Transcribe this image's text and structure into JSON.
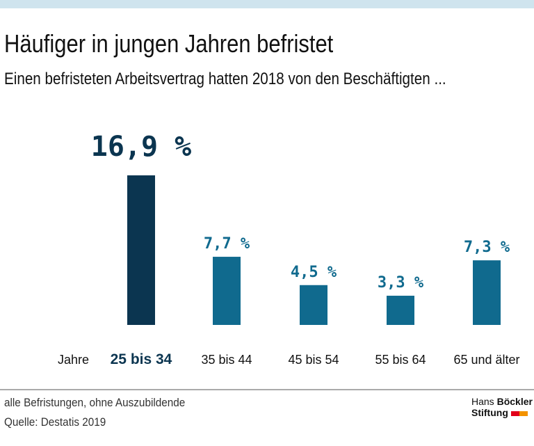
{
  "header": {
    "title": "Häufiger in jungen Jahren befristet",
    "subtitle": "Einen befristeten Arbeitsvertrag hatten 2018 von den Beschäftigten ..."
  },
  "chart_data": {
    "type": "bar",
    "xlabel": "Jahre",
    "categories": [
      "25 bis 34",
      "35 bis 44",
      "45 bis 54",
      "55 bis 64",
      "65 und älter"
    ],
    "values": [
      16.9,
      7.7,
      4.5,
      3.3,
      7.3
    ],
    "data_labels": [
      "16,9 %",
      "7,7 %",
      "4,5 %",
      "3,3 %",
      "7,3 %"
    ],
    "highlight_index": 0,
    "colors": {
      "highlight": "#0b3550",
      "default": "#106a8e"
    },
    "grid": false
  },
  "footer": {
    "note": "alle Befristungen, ohne Auszubildende",
    "source": "Quelle: Destatis 2019"
  },
  "logo": {
    "line1a": "Hans",
    "line1b": "Böckler",
    "line2": "Stiftung",
    "colors": [
      "#e2001a",
      "#f39200"
    ]
  }
}
